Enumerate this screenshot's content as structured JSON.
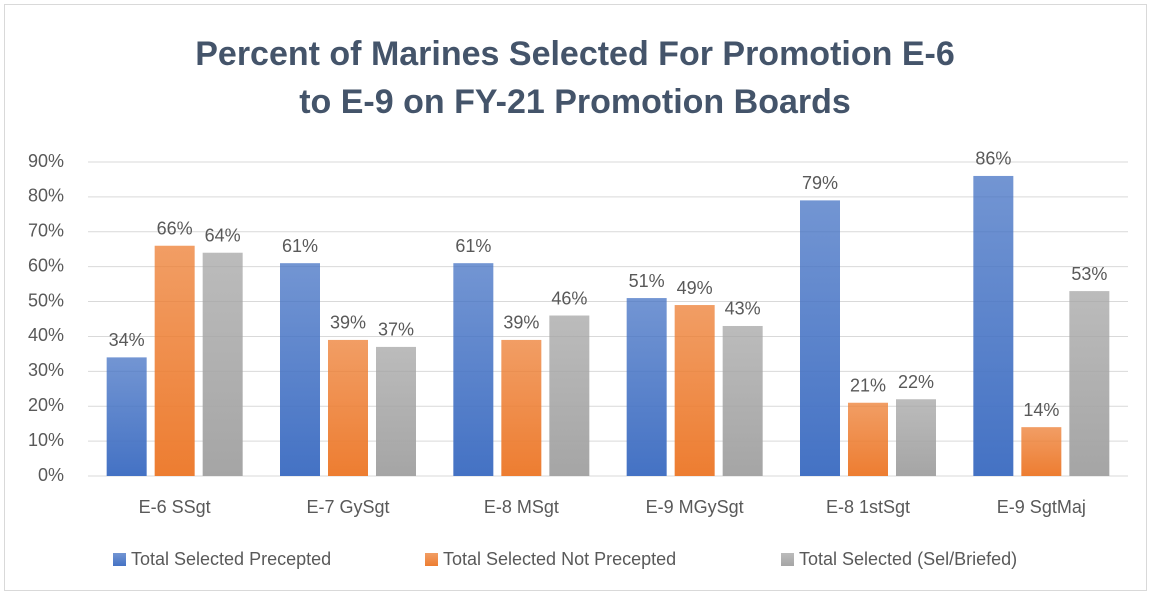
{
  "chart_data": {
    "type": "bar",
    "title": "Percent of Marines Selected For Promotion E-6 to E-9 on FY-21 Promotion Boards",
    "categories": [
      "E-6 SSgt",
      "E-7 GySgt",
      "E-8 MSgt",
      "E-9 MGySgt",
      "E-8 1stSgt",
      "E-9 SgtMaj"
    ],
    "series": [
      {
        "name": "Total Selected Precepted",
        "color": "#4472c4",
        "values": [
          34,
          61,
          61,
          51,
          79,
          86
        ],
        "value_labels": [
          "34%",
          "61%",
          "61%",
          "51%",
          "79%",
          "86%"
        ]
      },
      {
        "name": "Total Selected Not Precepted",
        "color": "#ed7d31",
        "values": [
          66,
          39,
          39,
          49,
          21,
          14
        ],
        "value_labels": [
          "66%",
          "39%",
          "39%",
          "49%",
          "21%",
          "14%"
        ]
      },
      {
        "name": "Total Selected (Sel/Briefed)",
        "color": "#a5a5a5",
        "values": [
          64,
          37,
          46,
          43,
          22,
          53
        ],
        "value_labels": [
          "64%",
          "37%",
          "46%",
          "43%",
          "22%",
          "53%"
        ]
      }
    ],
    "ylim": [
      0,
      90
    ],
    "yticks": [
      {
        "value": 0,
        "label": "0%"
      },
      {
        "value": 10,
        "label": "10%"
      },
      {
        "value": 20,
        "label": "20%"
      },
      {
        "value": 30,
        "label": "30%"
      },
      {
        "value": 40,
        "label": "40%"
      },
      {
        "value": 50,
        "label": "50%"
      },
      {
        "value": 60,
        "label": "60%"
      },
      {
        "value": 70,
        "label": "70%"
      },
      {
        "value": 80,
        "label": "80%"
      },
      {
        "value": 90,
        "label": "90%"
      }
    ],
    "grid": true,
    "legend": "bottom"
  }
}
